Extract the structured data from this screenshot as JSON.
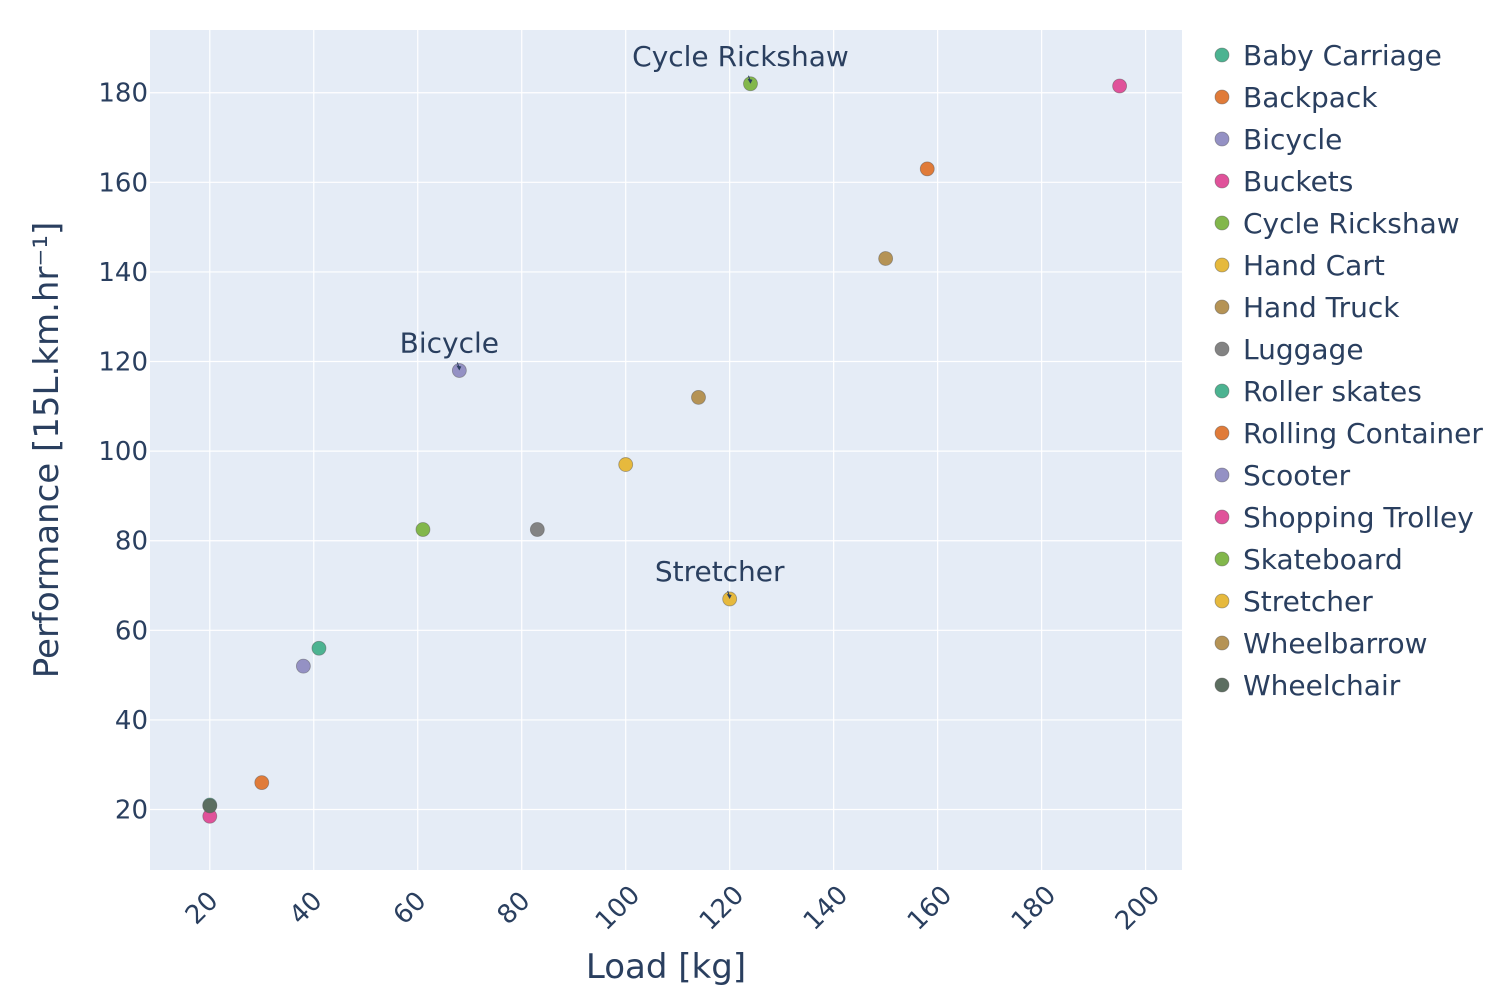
{
  "chart_data": {
    "type": "scatter",
    "xlabel": "Load [kg]",
    "ylabel": "Performance [15L.km.hr⁻¹]",
    "xlim": [
      8.5,
      207
    ],
    "ylim": [
      6.5,
      194
    ],
    "x_ticks": [
      20,
      40,
      60,
      80,
      100,
      120,
      140,
      160,
      180,
      200
    ],
    "y_ticks": [
      20,
      40,
      60,
      80,
      100,
      120,
      140,
      160,
      180
    ],
    "grid": true,
    "legend_position": "right",
    "series": [
      {
        "name": "Baby Carriage",
        "color": "#4cb391",
        "points": [
          {
            "x": 20,
            "y": 21
          }
        ]
      },
      {
        "name": "Backpack",
        "color": "#e07b39",
        "points": [
          {
            "x": 30,
            "y": 26
          }
        ]
      },
      {
        "name": "Bicycle",
        "color": "#9491c4",
        "points": [
          {
            "x": 68,
            "y": 118
          }
        ]
      },
      {
        "name": "Buckets",
        "color": "#e0529a",
        "points": [
          {
            "x": 20,
            "y": 18.5
          }
        ]
      },
      {
        "name": "Cycle Rickshaw",
        "color": "#82b74b",
        "points": [
          {
            "x": 124,
            "y": 182
          }
        ]
      },
      {
        "name": "Hand Cart",
        "color": "#e6b93d",
        "points": [
          {
            "x": 100,
            "y": 97
          }
        ]
      },
      {
        "name": "Hand Truck",
        "color": "#b59355",
        "points": [
          {
            "x": 114,
            "y": 112
          }
        ]
      },
      {
        "name": "Luggage",
        "color": "#838383",
        "points": [
          {
            "x": 83,
            "y": 82.5
          }
        ]
      },
      {
        "name": "Roller skates",
        "color": "#4cb391",
        "points": [
          {
            "x": 41,
            "y": 56
          }
        ]
      },
      {
        "name": "Rolling Container",
        "color": "#e07b39",
        "points": [
          {
            "x": 158,
            "y": 163
          }
        ]
      },
      {
        "name": "Scooter",
        "color": "#9491c4",
        "points": [
          {
            "x": 38,
            "y": 52
          }
        ]
      },
      {
        "name": "Shopping Trolley",
        "color": "#e0529a",
        "points": [
          {
            "x": 195,
            "y": 181.5
          }
        ]
      },
      {
        "name": "Skateboard",
        "color": "#82b74b",
        "points": [
          {
            "x": 61,
            "y": 82.5
          }
        ]
      },
      {
        "name": "Stretcher",
        "color": "#e6b93d",
        "points": [
          {
            "x": 120,
            "y": 67
          }
        ]
      },
      {
        "name": "Wheelbarrow",
        "color": "#b59355",
        "points": [
          {
            "x": 150,
            "y": 143
          }
        ]
      },
      {
        "name": "Wheelchair",
        "color": "#5c6e60",
        "points": [
          {
            "x": 20,
            "y": 20.8
          }
        ]
      }
    ],
    "annotations": [
      {
        "text": "Cycle Rickshaw",
        "x": 124,
        "y": 182
      },
      {
        "text": "Bicycle",
        "x": 68,
        "y": 118
      },
      {
        "text": "Stretcher",
        "x": 120,
        "y": 67
      }
    ]
  },
  "colors": {
    "plot_background": "#e5ecf6",
    "grid": "#ffffff",
    "text": "#2a3f5f"
  }
}
